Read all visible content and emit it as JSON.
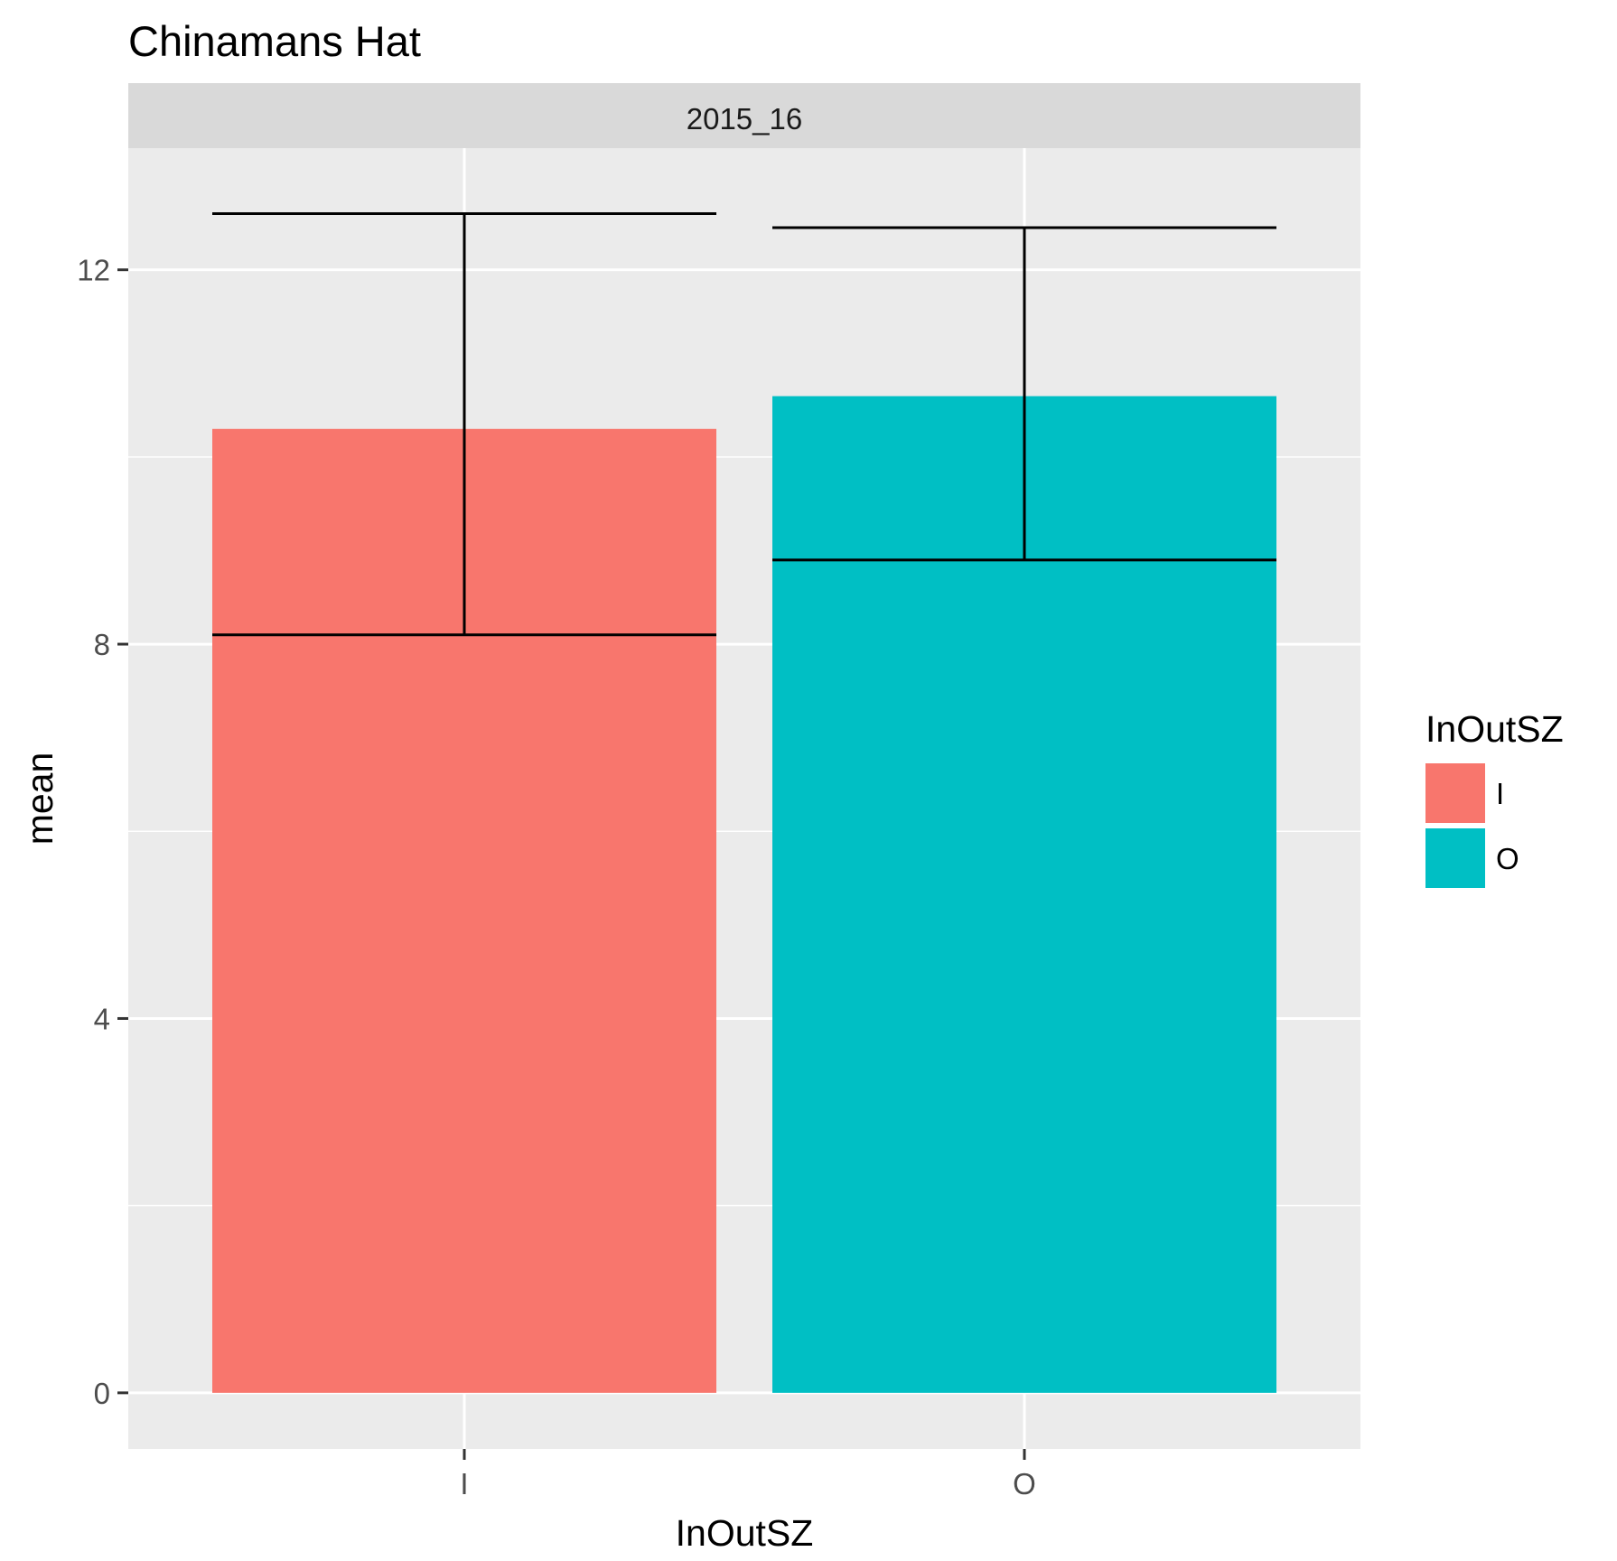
{
  "chart_data": {
    "type": "bar",
    "title": "Chinamans Hat",
    "facet": "2015_16",
    "xlabel": "InOutSZ",
    "ylabel": "mean",
    "categories": [
      "I",
      "O"
    ],
    "values": [
      10.3,
      10.65
    ],
    "error_low": [
      8.1,
      8.9
    ],
    "error_high": [
      12.6,
      12.45
    ],
    "ylim": [
      -0.6,
      13.3
    ],
    "yticks": [
      0,
      4,
      8,
      12
    ],
    "grid": true,
    "legend": {
      "title": "InOutSZ",
      "position": "right",
      "entries": [
        "I",
        "O"
      ]
    },
    "colors": [
      "#F8766D",
      "#00BFC4"
    ]
  }
}
